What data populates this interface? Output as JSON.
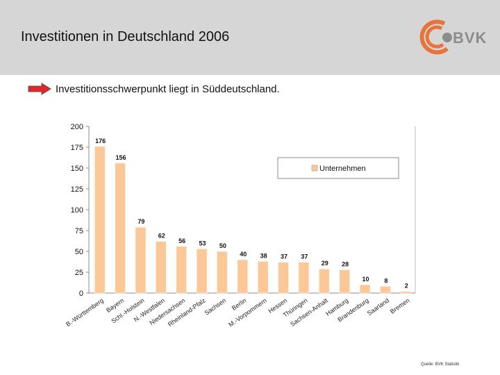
{
  "header": {
    "title": "Investitionen in Deutschland 2006",
    "logo_text": "BVK",
    "logo_color": "#e8743b"
  },
  "bullet": {
    "text": "Investitionsschwerpunkt liegt in Süddeutschland.",
    "arrow_color": "#e2262a"
  },
  "chart_data": {
    "type": "bar",
    "categories": [
      "B.-Württemberg",
      "Bayern",
      "Schl.-Holstein",
      "N.-Westfalen",
      "Niedersachsen",
      "Rheinland-Pfalz",
      "Sachsen",
      "Berlin",
      "M.-Vorpommern",
      "Hessen",
      "Thüringen",
      "Sachsen-Anhalt",
      "Hamburg",
      "Brandenburg",
      "Saarland",
      "Bremen"
    ],
    "series": [
      {
        "name": "Unternehmen",
        "values": [
          176,
          156,
          79,
          62,
          56,
          53,
          50,
          40,
          38,
          37,
          37,
          29,
          28,
          10,
          8,
          2
        ],
        "color": "#fcc898"
      }
    ],
    "ylim": [
      0,
      200
    ],
    "yticks": [
      0,
      25,
      50,
      75,
      100,
      125,
      150,
      175,
      200
    ],
    "title": "",
    "xlabel": "",
    "ylabel": "",
    "legend": "top-right"
  },
  "footer": {
    "source": "Quelle: BVK Statistik"
  }
}
